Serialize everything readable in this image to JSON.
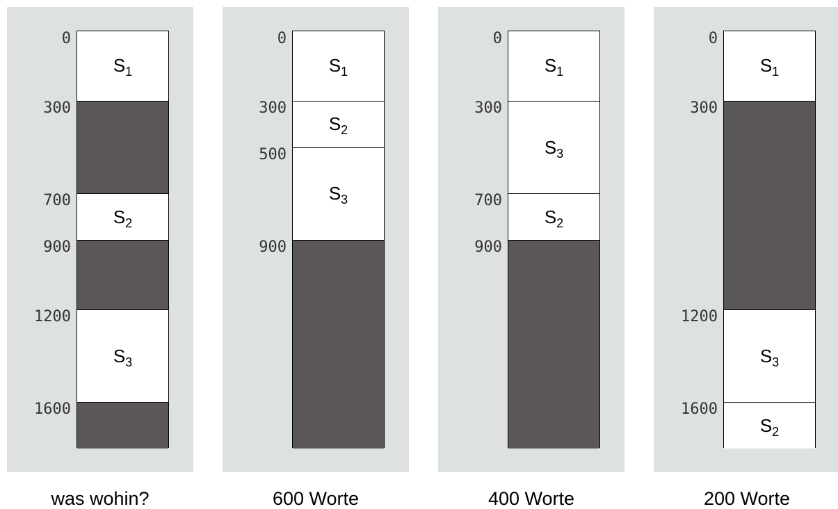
{
  "total": 1800,
  "panels": [
    {
      "caption": "was wohin?",
      "segments": [
        {
          "start": 0,
          "end": 300,
          "kind": "used",
          "name": "S",
          "index": "1"
        },
        {
          "start": 300,
          "end": 700,
          "kind": "free"
        },
        {
          "start": 700,
          "end": 900,
          "kind": "used",
          "name": "S",
          "index": "2"
        },
        {
          "start": 900,
          "end": 1200,
          "kind": "free"
        },
        {
          "start": 1200,
          "end": 1600,
          "kind": "used",
          "name": "S",
          "index": "3"
        },
        {
          "start": 1600,
          "end": 1800,
          "kind": "free"
        }
      ],
      "ticks": [
        "0",
        "300",
        "700",
        "900",
        "1200",
        "1600"
      ]
    },
    {
      "caption": "600 Worte",
      "segments": [
        {
          "start": 0,
          "end": 300,
          "kind": "used",
          "name": "S",
          "index": "1"
        },
        {
          "start": 300,
          "end": 500,
          "kind": "used",
          "name": "S",
          "index": "2"
        },
        {
          "start": 500,
          "end": 900,
          "kind": "used",
          "name": "S",
          "index": "3"
        },
        {
          "start": 900,
          "end": 1800,
          "kind": "free"
        }
      ],
      "ticks": [
        "0",
        "300",
        "500",
        "900"
      ]
    },
    {
      "caption": "400 Worte",
      "segments": [
        {
          "start": 0,
          "end": 300,
          "kind": "used",
          "name": "S",
          "index": "1"
        },
        {
          "start": 300,
          "end": 700,
          "kind": "used",
          "name": "S",
          "index": "3"
        },
        {
          "start": 700,
          "end": 900,
          "kind": "used",
          "name": "S",
          "index": "2"
        },
        {
          "start": 900,
          "end": 1800,
          "kind": "free"
        }
      ],
      "ticks": [
        "0",
        "300",
        "700",
        "900"
      ]
    },
    {
      "caption": "200 Worte",
      "segments": [
        {
          "start": 0,
          "end": 300,
          "kind": "used",
          "name": "S",
          "index": "1"
        },
        {
          "start": 300,
          "end": 1200,
          "kind": "free"
        },
        {
          "start": 1200,
          "end": 1600,
          "kind": "used",
          "name": "S",
          "index": "3"
        },
        {
          "start": 1600,
          "end": 1800,
          "kind": "used",
          "name": "S",
          "index": "2"
        }
      ],
      "ticks": [
        "0",
        "300",
        "1200",
        "1600"
      ]
    }
  ],
  "colors": {
    "panel_bg": "#dde2de",
    "free_block": "#5b5659",
    "used_block": "#ffffff"
  }
}
